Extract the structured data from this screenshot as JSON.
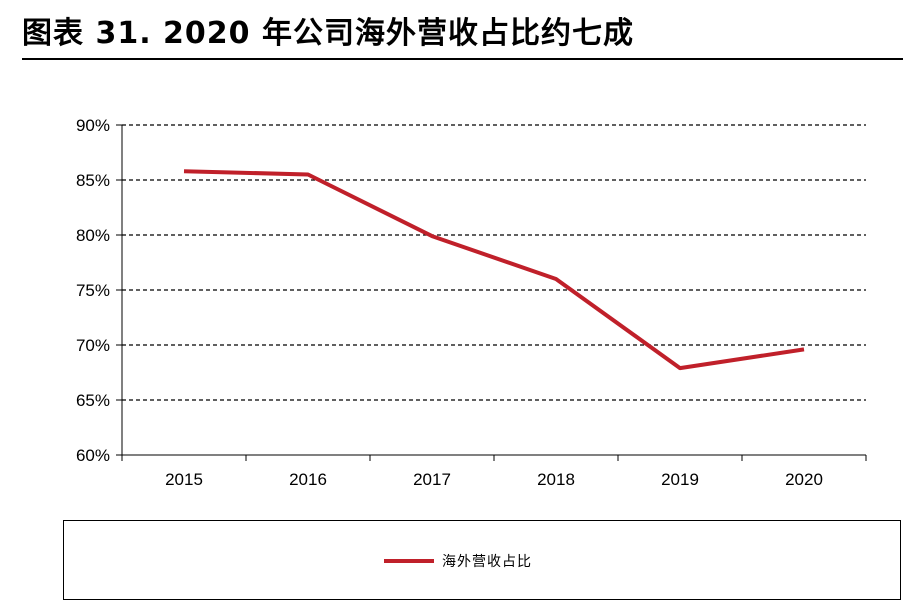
{
  "figure": {
    "title": "图表 31. 2020 年公司海外营收占比约七成"
  },
  "chart_data": {
    "type": "line",
    "title": "",
    "xlabel": "",
    "ylabel": "",
    "categories": [
      "2015",
      "2016",
      "2017",
      "2018",
      "2019",
      "2020"
    ],
    "series": [
      {
        "name": "海外营收占比",
        "values": [
          85.8,
          85.5,
          79.9,
          76.0,
          67.9,
          69.6
        ],
        "color": "#c0202a"
      }
    ],
    "ylim": [
      60,
      90
    ],
    "yticks": [
      60,
      65,
      70,
      75,
      80,
      85,
      90
    ],
    "ytick_labels": [
      "60%",
      "65%",
      "70%",
      "75%",
      "80%",
      "85%",
      "90%"
    ],
    "grid": "horizontal-dashed",
    "legend_position": "bottom"
  }
}
